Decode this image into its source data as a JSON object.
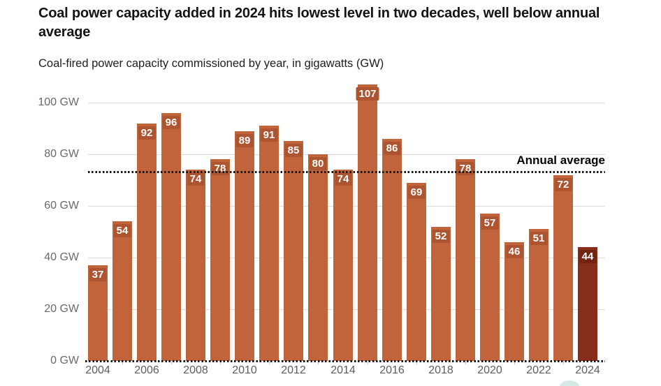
{
  "header": {
    "title": "Coal power capacity added in 2024 hits lowest level in two decades, well below annual average",
    "subtitle": "Coal-fired power capacity commissioned by year, in gigawatts (GW)"
  },
  "annotation": {
    "annual_average_label": "Annual average"
  },
  "colors": {
    "bar": "#c1643c",
    "bar_badge": "#ad5431",
    "highlight_bar": "#862d1c",
    "highlight_badge": "#722413",
    "gridline": "#dcdcdc",
    "dotted_line": "#161616",
    "y_axis_text": "#6a6a6a",
    "x_axis_text": "#5d5d5d"
  },
  "chart_data": {
    "type": "bar",
    "title": "Coal power capacity added in 2024 hits lowest level in two decades, well below annual average",
    "subtitle": "Coal-fired power capacity commissioned by year, in gigawatts (GW)",
    "unit": "GW",
    "categories": [
      2004,
      2005,
      2006,
      2007,
      2008,
      2009,
      2010,
      2011,
      2012,
      2013,
      2014,
      2015,
      2016,
      2017,
      2018,
      2019,
      2020,
      2021,
      2022,
      2023,
      2024
    ],
    "values": [
      37,
      54,
      92,
      96,
      74,
      78,
      89,
      91,
      85,
      80,
      74,
      107,
      86,
      69,
      52,
      78,
      57,
      46,
      51,
      72,
      44
    ],
    "highlight_category": 2024,
    "annual_average_gw": 73.4,
    "annual_average_label": "Annual average",
    "y_ticks": [
      0,
      20,
      40,
      60,
      80,
      100
    ],
    "y_tick_suffix": " GW",
    "x_tick_years": [
      2004,
      2006,
      2008,
      2010,
      2012,
      2014,
      2016,
      2018,
      2020,
      2022,
      2024
    ],
    "ylim": [
      0,
      110
    ],
    "grid": "horizontal",
    "legend": "none",
    "value_labels": "inside-top"
  }
}
